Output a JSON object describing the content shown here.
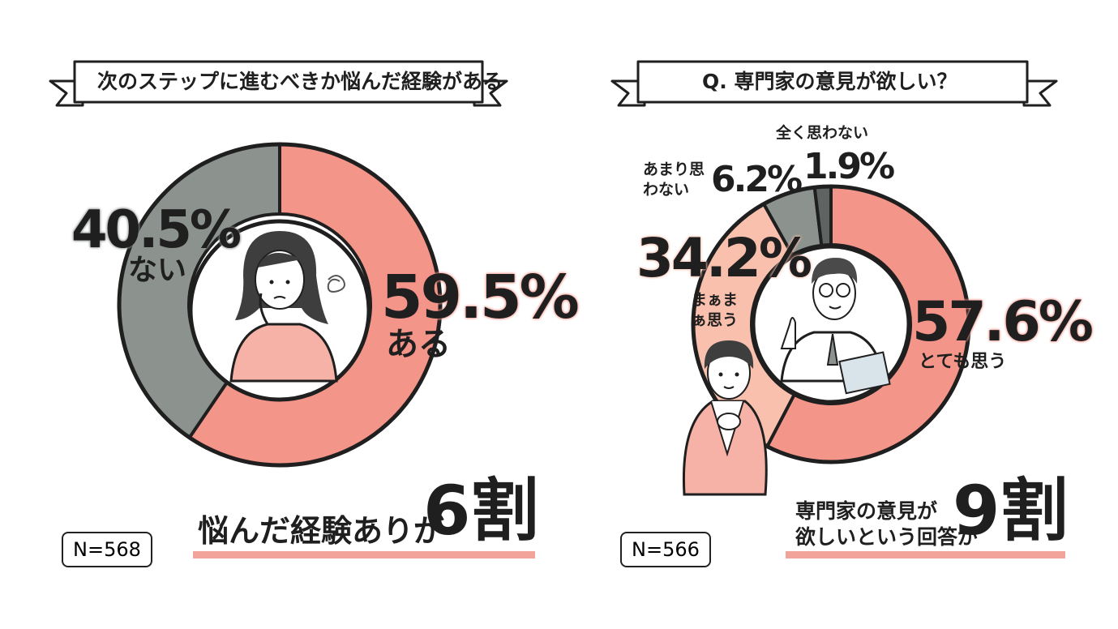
{
  "colors": {
    "coral": "#f4958a",
    "light_coral": "#f8c0ad",
    "gray": "#8c938f",
    "dark_gray": "#5f6361",
    "outline": "#1f1f1f",
    "underline": "#f3a49a"
  },
  "left": {
    "title": "次のステップに進むべきか悩んだ経験がある",
    "summary_text": "悩んだ経験ありが",
    "summary_big": "6割",
    "n_label": "N=568"
  },
  "right": {
    "title": "Q. 専門家の意見が欲しい？",
    "summary_line1": "専門家の意見が",
    "summary_line2": "欲しいという回答が",
    "summary_big": "9割",
    "n_label": "N=566"
  },
  "chart_data": [
    {
      "type": "pie",
      "title": "次のステップに進むべきか悩んだ経験がある",
      "slices": [
        {
          "label": "ある",
          "value": 59.5,
          "value_label": "59.5%",
          "color": "#f4958a"
        },
        {
          "label": "ない",
          "value": 40.5,
          "value_label": "40.5%",
          "color": "#8c938f"
        }
      ]
    },
    {
      "type": "pie",
      "title": "Q. 専門家の意見が欲しい？",
      "slices": [
        {
          "label": "とても思う",
          "value": 57.6,
          "value_label": "57.6%",
          "color": "#f4958a"
        },
        {
          "label": "まぁまぁ思う",
          "value": 34.2,
          "value_label": "34.2%",
          "color": "#f8c0ad"
        },
        {
          "label": "あまり思わない",
          "value": 6.2,
          "value_label": "6.2%",
          "color": "#8c938f"
        },
        {
          "label": "全く思わない",
          "value": 1.9,
          "value_label": "1.9%",
          "color": "#5f6361"
        }
      ]
    }
  ]
}
